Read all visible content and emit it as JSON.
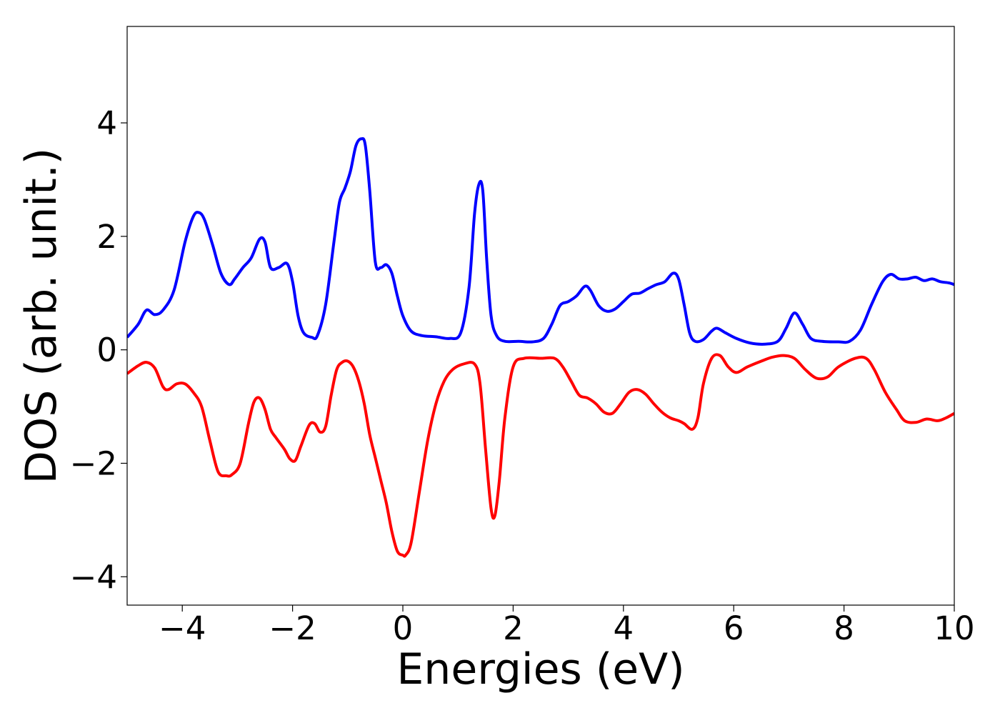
{
  "chart_data": {
    "type": "line",
    "title": "",
    "xlabel": "Energies (eV)",
    "ylabel": "DOS (arb. unit.)",
    "xlim": [
      -5,
      10
    ],
    "ylim": [
      -4.5,
      5.7
    ],
    "xticks": [
      -4,
      -2,
      0,
      2,
      4,
      6,
      8,
      10
    ],
    "yticks": [
      -4,
      -2,
      0,
      2,
      4
    ],
    "xtick_labels": [
      "−4",
      "−2",
      "0",
      "2",
      "4",
      "6",
      "8",
      "10"
    ],
    "ytick_labels": [
      "−4",
      "−2",
      "0",
      "2",
      "4"
    ],
    "grid": false,
    "legend": null,
    "series": [
      {
        "color": "#0000ff",
        "x": [
          -5.0,
          -4.8,
          -4.65,
          -4.5,
          -4.35,
          -4.15,
          -3.95,
          -3.8,
          -3.7,
          -3.6,
          -3.45,
          -3.3,
          -3.15,
          -3.05,
          -2.9,
          -2.75,
          -2.6,
          -2.5,
          -2.4,
          -2.25,
          -2.1,
          -2.0,
          -1.9,
          -1.8,
          -1.65,
          -1.55,
          -1.4,
          -1.25,
          -1.15,
          -1.05,
          -0.95,
          -0.85,
          -0.75,
          -0.68,
          -0.6,
          -0.5,
          -0.4,
          -0.3,
          -0.2,
          -0.1,
          0.0,
          0.15,
          0.35,
          0.6,
          0.85,
          1.05,
          1.2,
          1.3,
          1.38,
          1.45,
          1.52,
          1.6,
          1.7,
          1.85,
          2.1,
          2.35,
          2.55,
          2.7,
          2.85,
          3.0,
          3.15,
          3.3,
          3.4,
          3.55,
          3.7,
          3.85,
          4.0,
          4.15,
          4.3,
          4.45,
          4.6,
          4.75,
          4.9,
          5.0,
          5.1,
          5.2,
          5.3,
          5.45,
          5.6,
          5.7,
          5.85,
          6.05,
          6.3,
          6.55,
          6.8,
          6.95,
          7.1,
          7.25,
          7.4,
          7.6,
          7.9,
          8.1,
          8.3,
          8.5,
          8.7,
          8.85,
          9.0,
          9.15,
          9.3,
          9.45,
          9.6,
          9.75,
          9.9,
          10.0
        ],
        "y": [
          0.22,
          0.45,
          0.7,
          0.62,
          0.7,
          1.05,
          1.9,
          2.35,
          2.42,
          2.3,
          1.85,
          1.35,
          1.15,
          1.25,
          1.45,
          1.62,
          1.95,
          1.9,
          1.45,
          1.45,
          1.52,
          1.2,
          0.6,
          0.3,
          0.22,
          0.25,
          0.8,
          1.9,
          2.6,
          2.85,
          3.15,
          3.6,
          3.72,
          3.6,
          2.8,
          1.55,
          1.45,
          1.5,
          1.35,
          0.95,
          0.6,
          0.33,
          0.25,
          0.23,
          0.2,
          0.3,
          1.1,
          2.4,
          2.92,
          2.8,
          1.6,
          0.6,
          0.25,
          0.15,
          0.15,
          0.14,
          0.2,
          0.45,
          0.78,
          0.85,
          0.95,
          1.12,
          1.05,
          0.78,
          0.68,
          0.72,
          0.85,
          0.98,
          1.0,
          1.08,
          1.15,
          1.2,
          1.35,
          1.25,
          0.8,
          0.3,
          0.15,
          0.18,
          0.33,
          0.38,
          0.3,
          0.2,
          0.12,
          0.1,
          0.15,
          0.38,
          0.65,
          0.45,
          0.2,
          0.15,
          0.14,
          0.15,
          0.35,
          0.8,
          1.2,
          1.33,
          1.25,
          1.25,
          1.28,
          1.22,
          1.25,
          1.2,
          1.18,
          1.15
        ]
      },
      {
        "color": "#ff0000",
        "x": [
          -5.0,
          -4.8,
          -4.65,
          -4.5,
          -4.35,
          -4.25,
          -4.1,
          -3.95,
          -3.8,
          -3.65,
          -3.5,
          -3.35,
          -3.2,
          -3.1,
          -2.95,
          -2.8,
          -2.7,
          -2.6,
          -2.5,
          -2.4,
          -2.3,
          -2.15,
          -2.05,
          -1.95,
          -1.85,
          -1.7,
          -1.6,
          -1.5,
          -1.4,
          -1.3,
          -1.2,
          -1.1,
          -1.0,
          -0.9,
          -0.8,
          -0.7,
          -0.6,
          -0.5,
          -0.4,
          -0.3,
          -0.2,
          -0.1,
          0.0,
          0.05,
          0.15,
          0.3,
          0.45,
          0.6,
          0.75,
          0.9,
          1.1,
          1.3,
          1.4,
          1.5,
          1.6,
          1.67,
          1.75,
          1.85,
          2.0,
          2.2,
          2.5,
          2.75,
          2.9,
          3.05,
          3.2,
          3.35,
          3.5,
          3.65,
          3.8,
          3.95,
          4.1,
          4.25,
          4.4,
          4.55,
          4.7,
          4.85,
          5.0,
          5.1,
          5.25,
          5.35,
          5.45,
          5.6,
          5.75,
          5.9,
          6.05,
          6.25,
          6.5,
          6.7,
          6.9,
          7.1,
          7.3,
          7.5,
          7.7,
          7.9,
          8.2,
          8.4,
          8.55,
          8.75,
          8.95,
          9.1,
          9.3,
          9.5,
          9.7,
          9.85,
          10.0
        ],
        "y": [
          -0.42,
          -0.28,
          -0.22,
          -0.32,
          -0.65,
          -0.7,
          -0.6,
          -0.6,
          -0.75,
          -1.0,
          -1.6,
          -2.15,
          -2.22,
          -2.2,
          -2.0,
          -1.3,
          -0.92,
          -0.85,
          -1.05,
          -1.4,
          -1.55,
          -1.75,
          -1.92,
          -1.95,
          -1.7,
          -1.33,
          -1.3,
          -1.45,
          -1.35,
          -0.8,
          -0.35,
          -0.22,
          -0.2,
          -0.3,
          -0.55,
          -0.95,
          -1.5,
          -1.9,
          -2.3,
          -2.7,
          -3.2,
          -3.55,
          -3.62,
          -3.62,
          -3.4,
          -2.5,
          -1.6,
          -0.95,
          -0.55,
          -0.35,
          -0.25,
          -0.25,
          -0.6,
          -1.75,
          -2.8,
          -2.92,
          -2.3,
          -1.2,
          -0.3,
          -0.15,
          -0.15,
          -0.15,
          -0.3,
          -0.55,
          -0.8,
          -0.85,
          -0.95,
          -1.1,
          -1.12,
          -0.95,
          -0.75,
          -0.7,
          -0.78,
          -0.95,
          -1.1,
          -1.2,
          -1.25,
          -1.3,
          -1.4,
          -1.2,
          -0.6,
          -0.15,
          -0.1,
          -0.3,
          -0.4,
          -0.3,
          -0.2,
          -0.13,
          -0.1,
          -0.15,
          -0.35,
          -0.5,
          -0.48,
          -0.3,
          -0.15,
          -0.15,
          -0.35,
          -0.75,
          -1.05,
          -1.25,
          -1.28,
          -1.22,
          -1.25,
          -1.2,
          -1.12
        ]
      }
    ]
  }
}
